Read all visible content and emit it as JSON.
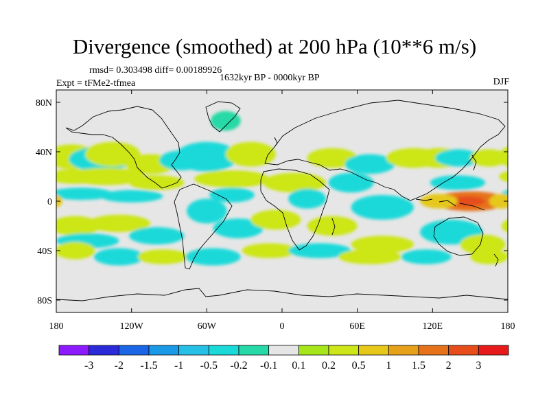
{
  "title": "Divergence (smoothed) at 200 hPa (10**6 m/s)",
  "stats_line": "rmsd= 0.303498 diff= 0.00189926",
  "expt_line": "Expt = tFMe2-tfmea",
  "period_line": "1632kyr BP - 0000kyr BP",
  "season": "DJF",
  "colors": {
    "ocean_background": "#e6e6e6",
    "coastline": "#000000"
  },
  "chart_data": {
    "type": "heatmap",
    "title": "Divergence (smoothed) at 200 hPa (10**6 m/s)",
    "units": "10**6 m/s",
    "projection": "cylindrical-equidistant",
    "xlim": [
      -180,
      180
    ],
    "ylim": [
      -90,
      90
    ],
    "x_ticks": [
      {
        "value": -180,
        "label": "180"
      },
      {
        "value": -120,
        "label": "120W"
      },
      {
        "value": -60,
        "label": "60W"
      },
      {
        "value": 0,
        "label": "0"
      },
      {
        "value": 60,
        "label": "60E"
      },
      {
        "value": 120,
        "label": "120E"
      },
      {
        "value": 180,
        "label": "180"
      }
    ],
    "y_ticks": [
      {
        "value": 80,
        "label": "80N"
      },
      {
        "value": 40,
        "label": "40N"
      },
      {
        "value": 0,
        "label": "0"
      },
      {
        "value": -40,
        "label": "40S"
      },
      {
        "value": -80,
        "label": "80S"
      }
    ],
    "colorbar": {
      "colors": [
        "#8c1aff",
        "#2a2ad9",
        "#1a66e6",
        "#1a99e6",
        "#26bfe6",
        "#1ad9d9",
        "#26d9a6",
        "#e6e6e6",
        "#a6e61a",
        "#cce619",
        "#e6c81a",
        "#e6a01a",
        "#e6731a",
        "#e64d1a",
        "#e61a1a"
      ],
      "labels": [
        "-3",
        "-2",
        "-1.5",
        "-1",
        "-0.5",
        "-0.2",
        "-0.1",
        "0.1",
        "0.2",
        "0.5",
        "1",
        "1.5",
        "2",
        "3"
      ]
    },
    "approx_regions": [
      {
        "lon": -168,
        "lat": 36,
        "w": 20,
        "h": 10,
        "v": 0.35
      },
      {
        "lon": -145,
        "lat": 34,
        "w": 25,
        "h": 10,
        "v": -0.3
      },
      {
        "lon": -135,
        "lat": 38,
        "w": 22,
        "h": 10,
        "v": 0.3
      },
      {
        "lon": -105,
        "lat": 30,
        "w": 20,
        "h": 8,
        "v": 0.3
      },
      {
        "lon": -80,
        "lat": 33,
        "w": 18,
        "h": 8,
        "v": -0.3
      },
      {
        "lon": -60,
        "lat": 36,
        "w": 25,
        "h": 12,
        "v": -0.3
      },
      {
        "lon": -25,
        "lat": 38,
        "w": 20,
        "h": 10,
        "v": 0.3
      },
      {
        "lon": -45,
        "lat": 65,
        "w": 12,
        "h": 8,
        "v": -0.2
      },
      {
        "lon": -165,
        "lat": 20,
        "w": 22,
        "h": 6,
        "v": 0.2
      },
      {
        "lon": -140,
        "lat": 20,
        "w": 30,
        "h": 7,
        "v": 0.35
      },
      {
        "lon": -100,
        "lat": 15,
        "w": 22,
        "h": 6,
        "v": 0.3
      },
      {
        "lon": -40,
        "lat": 18,
        "w": 30,
        "h": 7,
        "v": 0.3
      },
      {
        "lon": 10,
        "lat": 15,
        "w": 25,
        "h": 8,
        "v": 0.3
      },
      {
        "lon": -160,
        "lat": 6,
        "w": 25,
        "h": 5,
        "v": -0.3
      },
      {
        "lon": -120,
        "lat": 4,
        "w": 25,
        "h": 5,
        "v": -0.3
      },
      {
        "lon": -40,
        "lat": 5,
        "w": 18,
        "h": 6,
        "v": -0.3
      },
      {
        "lon": 20,
        "lat": 2,
        "w": 15,
        "h": 8,
        "v": -0.3
      },
      {
        "lon": 55,
        "lat": 15,
        "w": 18,
        "h": 8,
        "v": -0.3
      },
      {
        "lon": 80,
        "lat": -5,
        "w": 25,
        "h": 10,
        "v": -0.3
      },
      {
        "lon": 40,
        "lat": 35,
        "w": 20,
        "h": 8,
        "v": 0.35
      },
      {
        "lon": 70,
        "lat": 30,
        "w": 20,
        "h": 8,
        "v": -0.3
      },
      {
        "lon": 105,
        "lat": 35,
        "w": 22,
        "h": 8,
        "v": 0.35
      },
      {
        "lon": 125,
        "lat": 35,
        "w": 20,
        "h": 8,
        "v": 0.3
      },
      {
        "lon": 140,
        "lat": 35,
        "w": 18,
        "h": 7,
        "v": -0.3
      },
      {
        "lon": 165,
        "lat": 35,
        "w": 15,
        "h": 7,
        "v": 0.3
      },
      {
        "lon": 140,
        "lat": 15,
        "w": 22,
        "h": 6,
        "v": -0.3
      },
      {
        "lon": 150,
        "lat": 0,
        "w": 30,
        "h": 8,
        "v": 1.5
      },
      {
        "lon": 148,
        "lat": 0,
        "w": 14,
        "h": 4,
        "v": 2.2
      },
      {
        "lon": 125,
        "lat": 0,
        "w": 15,
        "h": 6,
        "v": 0.6
      },
      {
        "lon": 175,
        "lat": 0,
        "w": 10,
        "h": 6,
        "v": 0.5
      },
      {
        "lon": 135,
        "lat": -25,
        "w": 25,
        "h": 10,
        "v": -0.3
      },
      {
        "lon": 160,
        "lat": -35,
        "w": 18,
        "h": 8,
        "v": 0.3
      },
      {
        "lon": -165,
        "lat": -20,
        "w": 20,
        "h": 8,
        "v": 0.3
      },
      {
        "lon": -130,
        "lat": -18,
        "w": 25,
        "h": 7,
        "v": 0.35
      },
      {
        "lon": -155,
        "lat": -32,
        "w": 25,
        "h": 6,
        "v": -0.3
      },
      {
        "lon": -100,
        "lat": -28,
        "w": 22,
        "h": 7,
        "v": -0.3
      },
      {
        "lon": -60,
        "lat": -8,
        "w": 16,
        "h": 10,
        "v": -0.3
      },
      {
        "lon": -35,
        "lat": -22,
        "w": 20,
        "h": 8,
        "v": -0.3
      },
      {
        "lon": -5,
        "lat": -15,
        "w": 20,
        "h": 8,
        "v": 0.35
      },
      {
        "lon": 40,
        "lat": -20,
        "w": 20,
        "h": 8,
        "v": 0.3
      },
      {
        "lon": 80,
        "lat": -35,
        "w": 25,
        "h": 7,
        "v": 0.3
      },
      {
        "lon": -165,
        "lat": -40,
        "w": 16,
        "h": 7,
        "v": 0.35
      },
      {
        "lon": -130,
        "lat": -45,
        "w": 20,
        "h": 7,
        "v": -0.3
      },
      {
        "lon": -95,
        "lat": -45,
        "w": 20,
        "h": 6,
        "v": 0.3
      },
      {
        "lon": -55,
        "lat": -45,
        "w": 22,
        "h": 7,
        "v": -0.3
      },
      {
        "lon": -10,
        "lat": -40,
        "w": 22,
        "h": 6,
        "v": 0.3
      },
      {
        "lon": 30,
        "lat": -40,
        "w": 25,
        "h": 6,
        "v": -0.3
      },
      {
        "lon": 70,
        "lat": -45,
        "w": 25,
        "h": 6,
        "v": 0.3
      },
      {
        "lon": 115,
        "lat": -45,
        "w": 20,
        "h": 6,
        "v": -0.3
      },
      {
        "lon": 165,
        "lat": -45,
        "w": 15,
        "h": 6,
        "v": 0.3
      }
    ]
  }
}
